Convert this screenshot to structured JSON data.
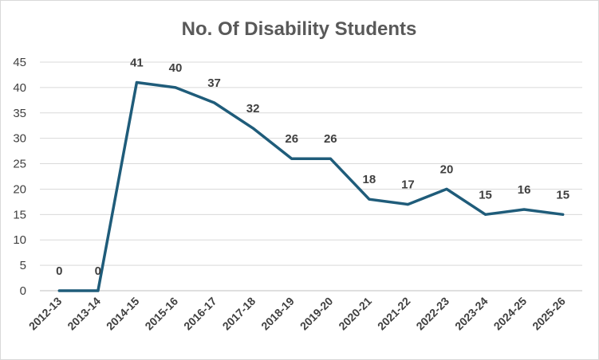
{
  "chart_data": {
    "type": "line",
    "title": "No. Of Disability Students",
    "xlabel": "",
    "ylabel": "",
    "categories": [
      "2012-13",
      "2013-14",
      "2014-15",
      "2015-16",
      "2016-17",
      "2017-18",
      "2018-19",
      "2019-20",
      "2020-21",
      "2021-22",
      "2022-23",
      "2023-24",
      "2024-25",
      "2025-26"
    ],
    "series": [
      {
        "values": [
          0,
          0,
          41,
          40,
          37,
          32,
          26,
          26,
          18,
          17,
          20,
          15,
          16,
          15
        ]
      }
    ],
    "ylim": [
      0,
      45
    ],
    "yticks": [
      0,
      5,
      10,
      15,
      20,
      25,
      30,
      35,
      40,
      45
    ],
    "grid": true,
    "legend": "none",
    "data_labels": true,
    "line_color": "#1f5c7a",
    "grid_color": "#d9d9d9",
    "axis_color": "#bfbfbf"
  }
}
